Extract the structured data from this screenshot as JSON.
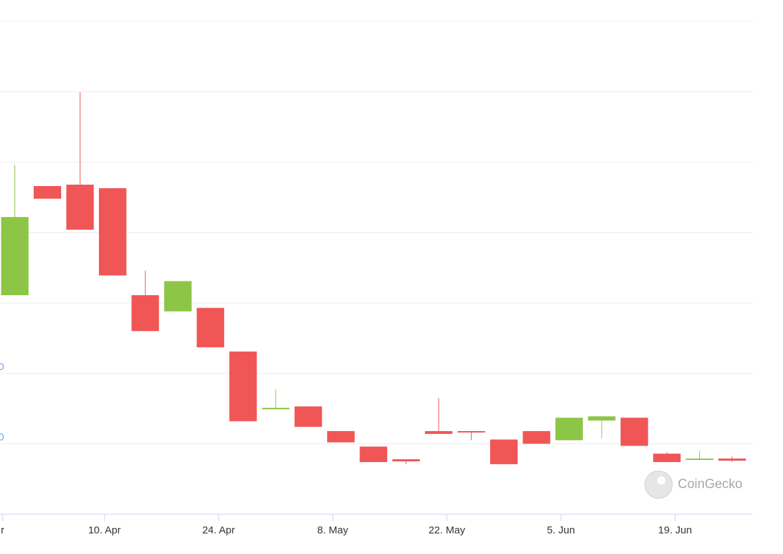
{
  "chart_data": {
    "type": "candlestick",
    "x": [
      89,
      93,
      97,
      101,
      105,
      109,
      113,
      117,
      121,
      125,
      129,
      133,
      137,
      141,
      145,
      149,
      153,
      157,
      161,
      165,
      169,
      173,
      177
    ],
    "open": [
      0.311,
      0.466,
      0.468,
      0.463,
      0.311,
      0.288,
      0.293,
      0.231,
      0.149,
      0.153,
      0.118,
      0.096,
      0.078,
      0.118,
      0.118,
      0.106,
      0.118,
      0.105,
      0.133,
      0.137,
      0.086,
      0.077,
      0.079
    ],
    "high": [
      0.496,
      0.466,
      0.599,
      0.463,
      0.346,
      0.331,
      0.293,
      0.231,
      0.177,
      0.153,
      0.118,
      0.096,
      0.078,
      0.165,
      0.118,
      0.106,
      0.118,
      0.137,
      0.139,
      0.137,
      0.088,
      0.09,
      0.082
    ],
    "low": [
      0.311,
      0.448,
      0.404,
      0.339,
      0.26,
      0.288,
      0.237,
      0.132,
      0.149,
      0.124,
      0.102,
      0.074,
      0.071,
      0.114,
      0.105,
      0.071,
      0.1,
      0.105,
      0.108,
      0.097,
      0.074,
      0.077,
      0.074
    ],
    "close": [
      0.422,
      0.448,
      0.404,
      0.339,
      0.26,
      0.331,
      0.237,
      0.132,
      0.151,
      0.124,
      0.102,
      0.074,
      0.075,
      0.114,
      0.116,
      0.071,
      0.1,
      0.137,
      0.139,
      0.097,
      0.074,
      0.079,
      0.076
    ],
    "up_color": "#8dc647",
    "down_color": "#f05656",
    "xlim": [
      87.18,
      179.53
    ],
    "xticks": [
      {
        "value": 87.5,
        "label": "r"
      },
      {
        "value": 100,
        "label": "10. Apr"
      },
      {
        "value": 114,
        "label": "24. Apr"
      },
      {
        "value": 128,
        "label": "8. May"
      },
      {
        "value": 142,
        "label": "22. May"
      },
      {
        "value": 156,
        "label": "5. Jun"
      },
      {
        "value": 170,
        "label": "19. Jun"
      }
    ],
    "ylim": [
      0,
      0.7
    ],
    "yticks": [
      {
        "value": 0.2,
        "label": "0"
      },
      {
        "value": 0.1,
        "label": "0"
      }
    ],
    "ygrid": [
      0.1,
      0.2,
      0.3,
      0.4,
      0.5,
      0.6,
      0.7
    ],
    "watermark": "CoinGecko"
  }
}
